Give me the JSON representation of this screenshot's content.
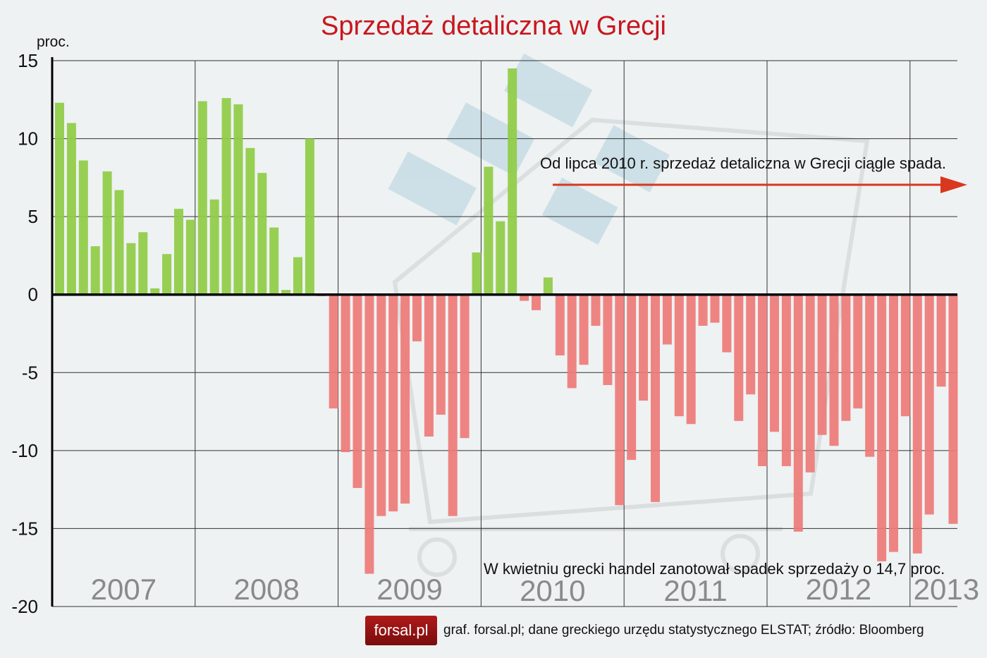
{
  "title": "Sprzedaż detaliczna w Grecji",
  "unit_label": "proc.",
  "annotations": {
    "top": "Od lipca 2010 r. sprzedaż detaliczna w Grecji ciągle spada.",
    "bottom": "W kwietniu grecki handel zanotował spadek sprzedaży o 14,7 proc."
  },
  "footer": {
    "logo": "forsal.pl",
    "source": "graf. forsal.pl;  dane greckiego urzędu statystycznego ELSTAT; źródło: Bloomberg"
  },
  "colors": {
    "positive": "#8fcc45",
    "negative": "#ee7b78",
    "title": "#c8161d",
    "arrow": "#d9381e"
  },
  "chart_data": {
    "type": "bar",
    "title": "Sprzedaż detaliczna w Grecji",
    "ylabel": "proc.",
    "ylim": [
      -20,
      15
    ],
    "yticks": [
      15,
      10,
      5,
      0,
      -5,
      -10,
      -15,
      -20
    ],
    "grid": true,
    "frequency": "monthly",
    "year_labels": [
      "2007",
      "2008",
      "2009",
      "2010",
      "2011",
      "2012",
      "2013"
    ],
    "values": [
      12.3,
      11.0,
      8.6,
      3.1,
      7.9,
      6.7,
      3.3,
      4.0,
      0.4,
      2.6,
      5.5,
      4.8,
      12.4,
      6.1,
      12.6,
      12.2,
      9.4,
      7.8,
      4.3,
      0.3,
      2.4,
      10.0,
      -0.1,
      -7.3,
      -10.1,
      -12.4,
      -17.9,
      -14.2,
      -13.9,
      -13.4,
      -3.0,
      -9.1,
      -7.7,
      -14.2,
      -9.2,
      2.7,
      8.2,
      4.7,
      14.5,
      -0.4,
      -1.0,
      1.1,
      -3.9,
      -6.0,
      -4.5,
      -2.0,
      -5.8,
      -13.5,
      -10.6,
      -6.8,
      -13.3,
      -3.2,
      -7.8,
      -8.3,
      -2.0,
      -1.8,
      -3.7,
      -8.1,
      -6.4,
      -11.0,
      -8.8,
      -11.0,
      -15.2,
      -11.4,
      -9.0,
      -9.7,
      -8.1,
      -7.3,
      -10.4,
      -17.1,
      -16.5,
      -7.8,
      -16.6,
      -14.1,
      -5.9,
      -14.7
    ]
  }
}
